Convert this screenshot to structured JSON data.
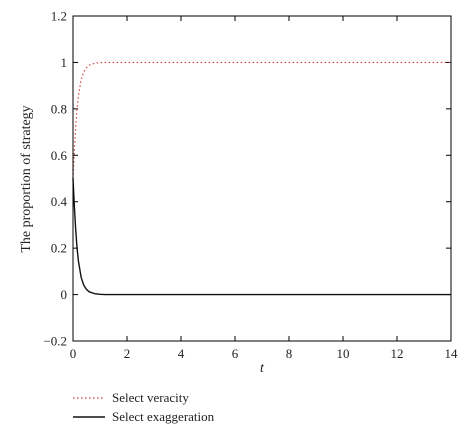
{
  "chart_data": {
    "type": "line",
    "xlabel": "t",
    "ylabel": "The proportion of strategy",
    "xlim": [
      0,
      14
    ],
    "ylim": [
      -0.2,
      1.2
    ],
    "x_ticks": [
      0,
      2,
      4,
      6,
      8,
      10,
      12,
      14
    ],
    "y_ticks": [
      -0.2,
      0,
      0.2,
      0.4,
      0.6,
      0.8,
      1,
      1.2
    ],
    "x_tick_labels": [
      "0",
      "2",
      "4",
      "6",
      "8",
      "10",
      "12",
      "14"
    ],
    "y_tick_labels": [
      "−0.2",
      "0",
      "0.2",
      "0.4",
      "0.6",
      "0.8",
      "1",
      "1.2"
    ],
    "grid": false,
    "legend_position": "bottom-left, below plot",
    "series": [
      {
        "name": "Select veracity",
        "color": "#d04040",
        "style": "dotted",
        "x": [
          0,
          0.05,
          0.1,
          0.15,
          0.2,
          0.3,
          0.4,
          0.5,
          0.6,
          0.8,
          1.0,
          1.2,
          1.5,
          2.0,
          3,
          4,
          6,
          8,
          10,
          12,
          14
        ],
        "y": [
          0.5,
          0.62,
          0.72,
          0.8,
          0.855,
          0.925,
          0.96,
          0.978,
          0.988,
          0.996,
          0.999,
          1.0,
          1.0,
          1.0,
          1.0,
          1.0,
          1.0,
          1.0,
          1.0,
          1.0,
          1.0
        ]
      },
      {
        "name": "Select exaggeration",
        "color": "#111111",
        "style": "solid",
        "x": [
          0,
          0.05,
          0.1,
          0.15,
          0.2,
          0.3,
          0.4,
          0.5,
          0.6,
          0.8,
          1.0,
          1.2,
          1.5,
          2.0,
          3,
          4,
          6,
          8,
          10,
          12,
          14
        ],
        "y": [
          0.5,
          0.38,
          0.28,
          0.2,
          0.145,
          0.075,
          0.04,
          0.022,
          0.012,
          0.004,
          0.001,
          0.0,
          0.0,
          0.0,
          0.0,
          0.0,
          0.0,
          0.0,
          0.0,
          0.0,
          0.0
        ]
      }
    ]
  }
}
